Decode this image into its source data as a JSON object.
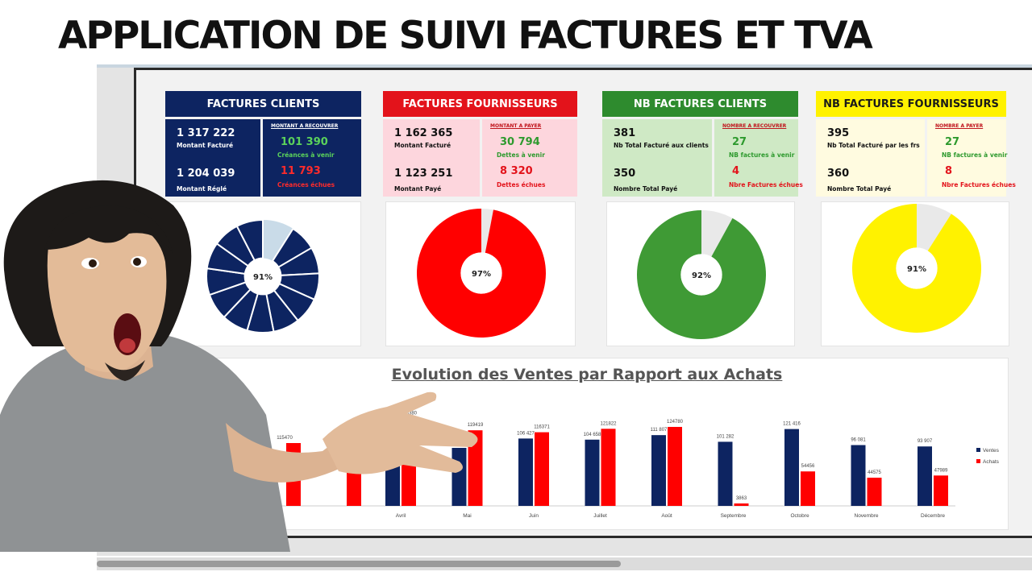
{
  "headline": "APPLICATION DE SUIVI FACTURES  ET  TVA",
  "colors": {
    "navy": "#0d2461",
    "red": "#ff0000",
    "green": "#2e8b2e",
    "yellow": "#fff200",
    "pink_bg": "#fdd6dd",
    "green_bg": "#cfe9c5",
    "cream_bg": "#fffbe0"
  },
  "cards": [
    {
      "title": "FACTURES CLIENTS",
      "left_value_1": "1 317 222",
      "left_label_1": "Montant Facturé",
      "left_value_2": "1 204 039",
      "left_label_2": "Montant Réglé",
      "right_heading": "MONTANT A RECOUVRER",
      "right_value_1": "101 390",
      "right_label_1": "Créances à venir",
      "right_value_2": "11 793",
      "right_label_2": "Créances échues"
    },
    {
      "title": "FACTURES FOURNISSEURS",
      "left_value_1": "1 162 365",
      "left_label_1": "Montant Facturé",
      "left_value_2": "1 123 251",
      "left_label_2": "Montant Payé",
      "right_heading": "MONTANT A PAYER",
      "right_value_1": "30 794",
      "right_label_1": "Dettes à venir",
      "right_value_2": "8 320",
      "right_label_2": "Dettes échues"
    },
    {
      "title": "NB FACTURES  CLIENTS",
      "left_value_1": "381",
      "left_label_1": "Nb Total Facturé aux clients",
      "left_value_2": "350",
      "left_label_2": "Nombre Total Payé",
      "right_heading": "NOMBRE A RECOUVRER",
      "right_value_1": "27",
      "right_label_1": "NB factures à venir",
      "right_value_2": "4",
      "right_label_2": "Nbre Factures échues"
    },
    {
      "title": "NB FACTURES FOURNISSEURS",
      "left_value_1": "395",
      "left_label_1": "Nb Total Facturé par les frs",
      "left_value_2": "360",
      "left_label_2": "Nombre Total Payé",
      "right_heading": "NOMBRE A PAYER",
      "right_value_1": "27",
      "right_label_1": "NB factures à venir",
      "right_value_2": "8",
      "right_label_2": "Nbre Factures échues"
    }
  ],
  "donuts": [
    {
      "label": "91%",
      "fraction": 0.91,
      "color": "#0d2461",
      "segmented": true
    },
    {
      "label": "97%",
      "fraction": 0.97,
      "color": "#ff0000",
      "segmented": false
    },
    {
      "label": "92%",
      "fraction": 0.92,
      "color": "#3f9a35",
      "segmented": false
    },
    {
      "label": "91%",
      "fraction": 0.91,
      "color": "#fff200",
      "segmented": false
    }
  ],
  "chart_data": {
    "type": "bar",
    "title": "Evolution des Ventes par Rapport aux Achats",
    "categories": [
      "Avril",
      "Mai",
      "Juin",
      "Juillet",
      "Août",
      "Septembre",
      "Octobre",
      "Novembre",
      "Décembre"
    ],
    "series": [
      {
        "name": "Ventes",
        "color": "#0d2461",
        "values": [
          null,
          null,
          106427,
          104658,
          111807,
          101282,
          121416,
          96081,
          93907
        ],
        "labels": [
          "",
          "",
          "106 427",
          "104 658",
          "111 807",
          "101 282",
          "121 416",
          "96 081",
          "93 907"
        ]
      },
      {
        "name": "Achats",
        "color": "#ff0000",
        "values": [
          138380,
          119419,
          116371,
          121822,
          124780,
          3863,
          54456,
          44575,
          47989
        ],
        "labels": [
          "138380",
          "119419",
          "116371",
          "121822",
          "124780",
          "3863",
          "54456",
          "44575",
          "47989"
        ]
      }
    ],
    "partial_labels": [
      "115470"
    ],
    "ylim": [
      0,
      140000
    ],
    "legend": "right"
  }
}
